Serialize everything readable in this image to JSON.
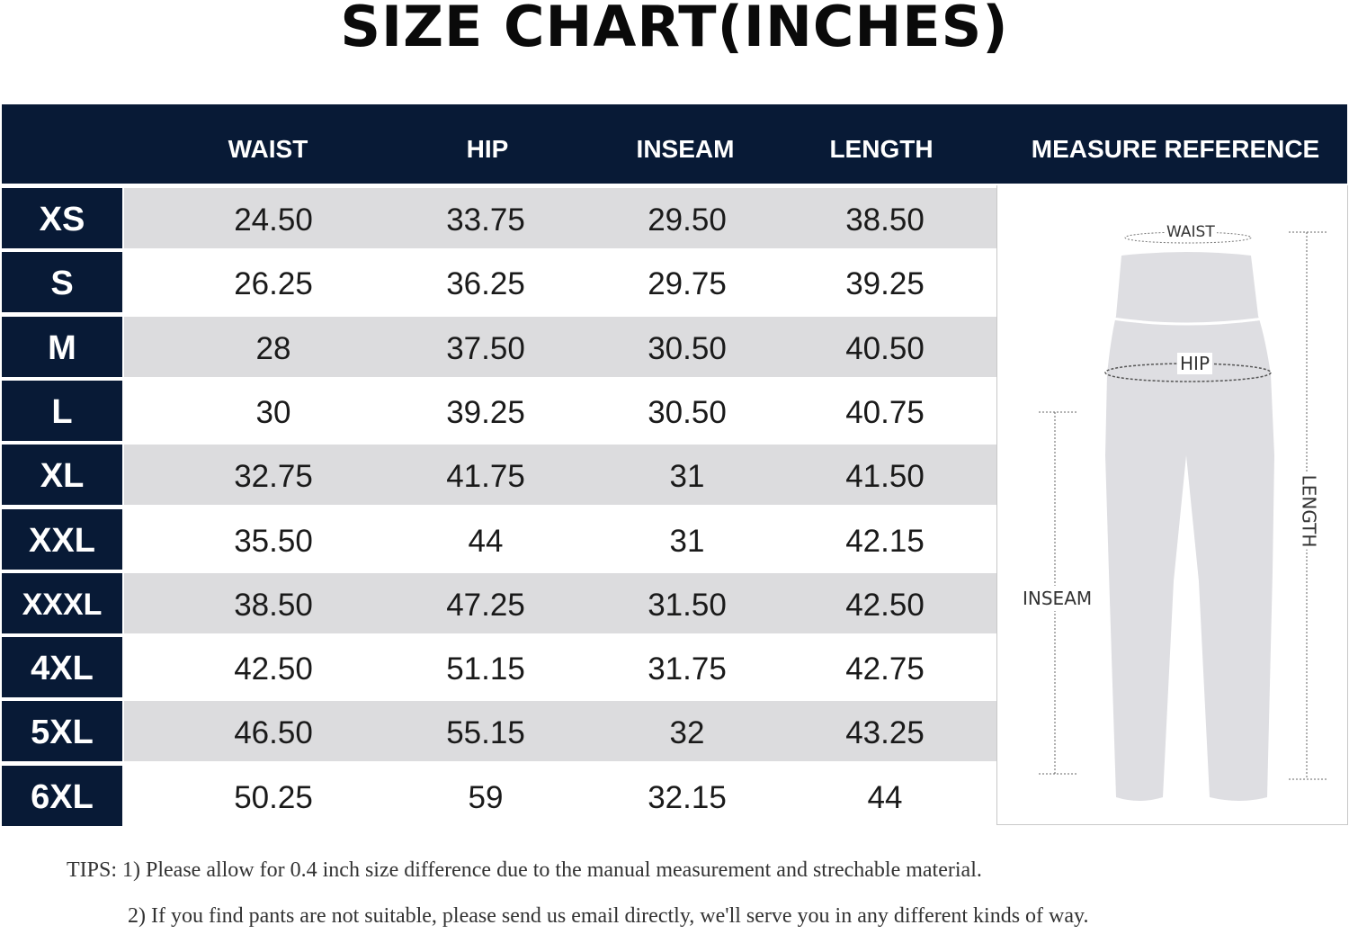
{
  "title": "SIZE CHART(INCHES)",
  "headers": [
    "WAIST",
    "HIP",
    "INSEAM",
    "LENGTH",
    "MEASURE REFERENCE"
  ],
  "rows": [
    {
      "size": "XS",
      "values": [
        "24.50",
        "33.75",
        "29.50",
        "38.50"
      ]
    },
    {
      "size": "S",
      "values": [
        "26.25",
        "36.25",
        "29.75",
        "39.25"
      ]
    },
    {
      "size": "M",
      "values": [
        "28",
        "37.50",
        "30.50",
        "40.50"
      ]
    },
    {
      "size": "L",
      "values": [
        "30",
        "39.25",
        "30.50",
        "40.75"
      ]
    },
    {
      "size": "XL",
      "values": [
        "32.75",
        "41.75",
        "31",
        "41.50"
      ]
    },
    {
      "size": "XXL",
      "values": [
        "35.50",
        "44",
        "31",
        "42.15"
      ]
    },
    {
      "size": "XXXL",
      "values": [
        "38.50",
        "47.25",
        "31.50",
        "42.50"
      ]
    },
    {
      "size": "4XL",
      "values": [
        "42.50",
        "51.15",
        "31.75",
        "42.75"
      ]
    },
    {
      "size": "5XL",
      "values": [
        "46.50",
        "55.15",
        "32",
        "43.25"
      ]
    },
    {
      "size": "6XL",
      "values": [
        "50.25",
        "59",
        "32.15",
        "44"
      ]
    }
  ],
  "reference": {
    "waist_label": "WAIST",
    "hip_label": "HIP",
    "inseam_label": "INSEAM",
    "length_label": "LENGTH"
  },
  "tips": {
    "line1": "TIPS: 1) Please allow for 0.4 inch size difference due to the manual measurement and strechable material.",
    "line2": "2)  If you find pants are not suitable, please send us email directly, we'll serve you in any different kinds of way."
  },
  "colors": {
    "navy": "#081a36",
    "stripe": "#dcdcde",
    "pants": "#dedee2"
  }
}
